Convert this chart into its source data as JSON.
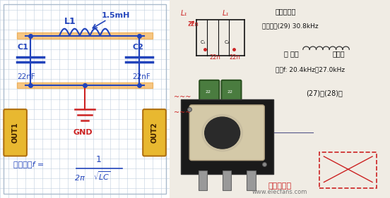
{
  "figsize": [
    5.52,
    2.81
  ],
  "dpi": 100,
  "left_bg": "#dce5f0",
  "grid_color": "#c0cede",
  "circuit_color": "#2244bb",
  "gnd_color": "#cc2222",
  "highlight_color": "#f0a030",
  "out_fill": "#e8b830",
  "out_edge": "#b07010",
  "formula_color": "#2244bb",
  "label_L1": "L1",
  "label_val": "1.5mH",
  "label_C1": "C1",
  "label_C2": "C2",
  "label_22nF": "22nF",
  "label_OUT1": "OUT1",
  "label_OUT2": "OUT2",
  "label_GND": "GND",
  "right_bg": "#e8e0d5",
  "photo_bg": "#f2ede6"
}
